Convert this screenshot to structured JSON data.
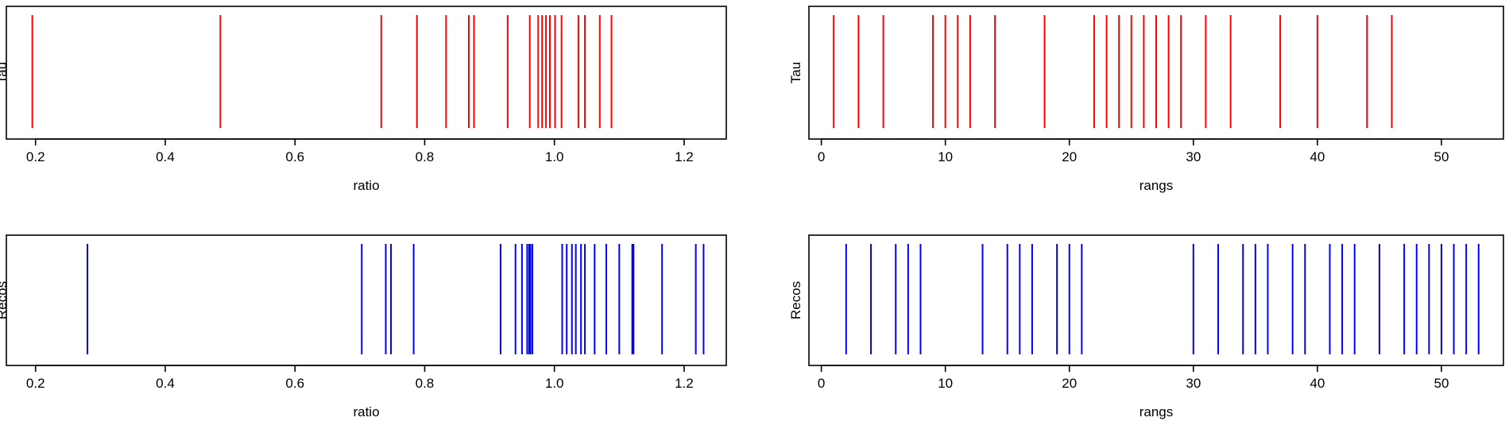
{
  "chart_data": [
    {
      "type": "rug",
      "ylabel": "Tau",
      "xlabel": "ratio",
      "xlim": [
        0.155,
        1.265
      ],
      "xticks": [
        "0.2",
        "0.4",
        "0.6",
        "0.8",
        "1.0",
        "1.2"
      ],
      "color": "#ff0000",
      "values": [
        0.195,
        0.485,
        0.733,
        0.788,
        0.833,
        0.868,
        0.876,
        0.928,
        0.962,
        0.975,
        0.981,
        0.987,
        0.993,
        1.001,
        1.011,
        1.037,
        1.047,
        1.07,
        1.088
      ]
    },
    {
      "type": "rug",
      "ylabel": "Tau",
      "xlabel": "rangs",
      "xlim": [
        -1,
        55
      ],
      "xticks": [
        "0",
        "10",
        "20",
        "30",
        "40",
        "50"
      ],
      "color": "#ff0000",
      "values": [
        1,
        3,
        5,
        9,
        10,
        11,
        12,
        14,
        18,
        22,
        23,
        24,
        25,
        26,
        27,
        28,
        29,
        31,
        33,
        37,
        40,
        44,
        46
      ]
    },
    {
      "type": "rug",
      "ylabel": "Recos",
      "xlabel": "ratio",
      "xlim": [
        0.155,
        1.265
      ],
      "xticks": [
        "0.2",
        "0.4",
        "0.6",
        "0.8",
        "1.0",
        "1.2"
      ],
      "color": "#0000ff",
      "values": [
        0.28,
        0.703,
        0.74,
        0.748,
        0.783,
        0.917,
        0.94,
        0.95,
        0.958,
        0.961,
        0.963,
        0.966,
        1.012,
        1.019,
        1.027,
        1.033,
        1.041,
        1.047,
        1.062,
        1.08,
        1.1,
        1.12,
        1.122,
        1.166,
        1.218,
        1.23
      ]
    },
    {
      "type": "rug",
      "ylabel": "Recos",
      "xlabel": "rangs",
      "xlim": [
        -1,
        55
      ],
      "xticks": [
        "0",
        "10",
        "20",
        "30",
        "40",
        "50"
      ],
      "color": "#0000ff",
      "values": [
        2,
        4,
        6,
        7,
        8,
        13,
        15,
        16,
        17,
        19,
        20,
        21,
        30,
        32,
        34,
        35,
        36,
        38,
        39,
        41,
        42,
        43,
        45,
        47,
        48,
        49,
        50,
        51,
        52,
        53
      ]
    }
  ]
}
